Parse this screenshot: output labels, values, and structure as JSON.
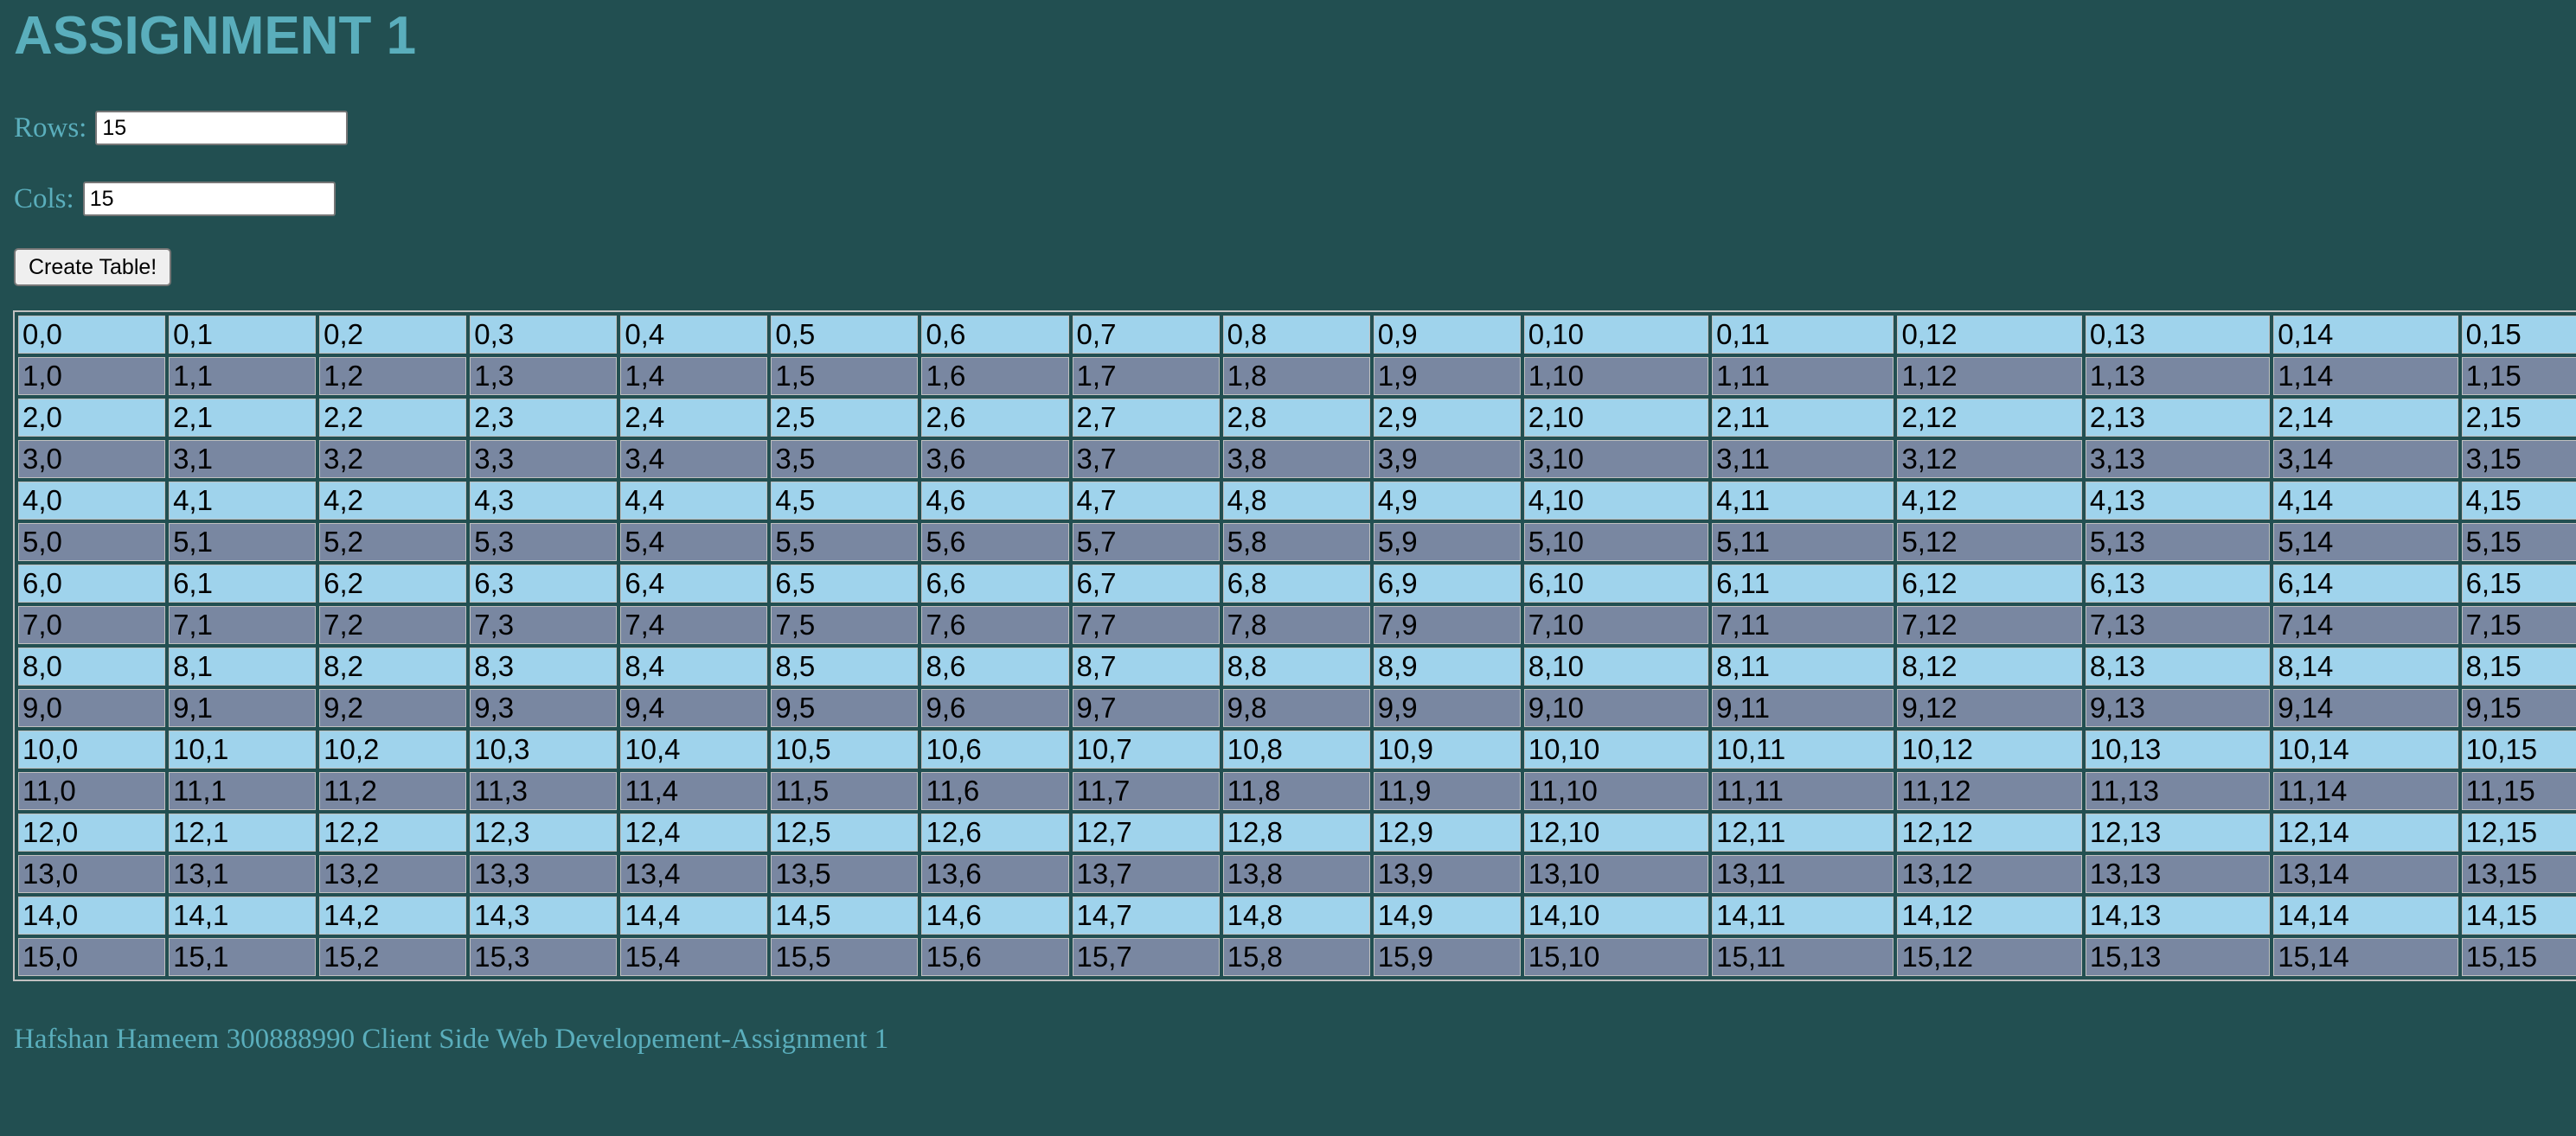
{
  "page": {
    "title": "ASSIGNMENT 1",
    "rows_label": "Rows:",
    "rows_value": "15",
    "cols_label": "Cols:",
    "cols_value": "15",
    "button_label": "Create Table!",
    "footer": "Hafshan Hameem 300888990 Client Side Web Developement-Assignment 1"
  },
  "colors": {
    "background": "#224f51",
    "accent_text": "#5aaebc",
    "row_odd": "#9fd3ec",
    "row_even": "#7987a1"
  },
  "table": {
    "rows": [
      [
        "0,0",
        "0,1",
        "0,2",
        "0,3",
        "0,4",
        "0,5",
        "0,6",
        "0,7",
        "0,8",
        "0,9",
        "0,10",
        "0,11",
        "0,12",
        "0,13",
        "0,14",
        "0,15"
      ],
      [
        "1,0",
        "1,1",
        "1,2",
        "1,3",
        "1,4",
        "1,5",
        "1,6",
        "1,7",
        "1,8",
        "1,9",
        "1,10",
        "1,11",
        "1,12",
        "1,13",
        "1,14",
        "1,15"
      ],
      [
        "2,0",
        "2,1",
        "2,2",
        "2,3",
        "2,4",
        "2,5",
        "2,6",
        "2,7",
        "2,8",
        "2,9",
        "2,10",
        "2,11",
        "2,12",
        "2,13",
        "2,14",
        "2,15"
      ],
      [
        "3,0",
        "3,1",
        "3,2",
        "3,3",
        "3,4",
        "3,5",
        "3,6",
        "3,7",
        "3,8",
        "3,9",
        "3,10",
        "3,11",
        "3,12",
        "3,13",
        "3,14",
        "3,15"
      ],
      [
        "4,0",
        "4,1",
        "4,2",
        "4,3",
        "4,4",
        "4,5",
        "4,6",
        "4,7",
        "4,8",
        "4,9",
        "4,10",
        "4,11",
        "4,12",
        "4,13",
        "4,14",
        "4,15"
      ],
      [
        "5,0",
        "5,1",
        "5,2",
        "5,3",
        "5,4",
        "5,5",
        "5,6",
        "5,7",
        "5,8",
        "5,9",
        "5,10",
        "5,11",
        "5,12",
        "5,13",
        "5,14",
        "5,15"
      ],
      [
        "6,0",
        "6,1",
        "6,2",
        "6,3",
        "6,4",
        "6,5",
        "6,6",
        "6,7",
        "6,8",
        "6,9",
        "6,10",
        "6,11",
        "6,12",
        "6,13",
        "6,14",
        "6,15"
      ],
      [
        "7,0",
        "7,1",
        "7,2",
        "7,3",
        "7,4",
        "7,5",
        "7,6",
        "7,7",
        "7,8",
        "7,9",
        "7,10",
        "7,11",
        "7,12",
        "7,13",
        "7,14",
        "7,15"
      ],
      [
        "8,0",
        "8,1",
        "8,2",
        "8,3",
        "8,4",
        "8,5",
        "8,6",
        "8,7",
        "8,8",
        "8,9",
        "8,10",
        "8,11",
        "8,12",
        "8,13",
        "8,14",
        "8,15"
      ],
      [
        "9,0",
        "9,1",
        "9,2",
        "9,3",
        "9,4",
        "9,5",
        "9,6",
        "9,7",
        "9,8",
        "9,9",
        "9,10",
        "9,11",
        "9,12",
        "9,13",
        "9,14",
        "9,15"
      ],
      [
        "10,0",
        "10,1",
        "10,2",
        "10,3",
        "10,4",
        "10,5",
        "10,6",
        "10,7",
        "10,8",
        "10,9",
        "10,10",
        "10,11",
        "10,12",
        "10,13",
        "10,14",
        "10,15"
      ],
      [
        "11,0",
        "11,1",
        "11,2",
        "11,3",
        "11,4",
        "11,5",
        "11,6",
        "11,7",
        "11,8",
        "11,9",
        "11,10",
        "11,11",
        "11,12",
        "11,13",
        "11,14",
        "11,15"
      ],
      [
        "12,0",
        "12,1",
        "12,2",
        "12,3",
        "12,4",
        "12,5",
        "12,6",
        "12,7",
        "12,8",
        "12,9",
        "12,10",
        "12,11",
        "12,12",
        "12,13",
        "12,14",
        "12,15"
      ],
      [
        "13,0",
        "13,1",
        "13,2",
        "13,3",
        "13,4",
        "13,5",
        "13,6",
        "13,7",
        "13,8",
        "13,9",
        "13,10",
        "13,11",
        "13,12",
        "13,13",
        "13,14",
        "13,15"
      ],
      [
        "14,0",
        "14,1",
        "14,2",
        "14,3",
        "14,4",
        "14,5",
        "14,6",
        "14,7",
        "14,8",
        "14,9",
        "14,10",
        "14,11",
        "14,12",
        "14,13",
        "14,14",
        "14,15"
      ],
      [
        "15,0",
        "15,1",
        "15,2",
        "15,3",
        "15,4",
        "15,5",
        "15,6",
        "15,7",
        "15,8",
        "15,9",
        "15,10",
        "15,11",
        "15,12",
        "15,13",
        "15,14",
        "15,15"
      ]
    ]
  }
}
